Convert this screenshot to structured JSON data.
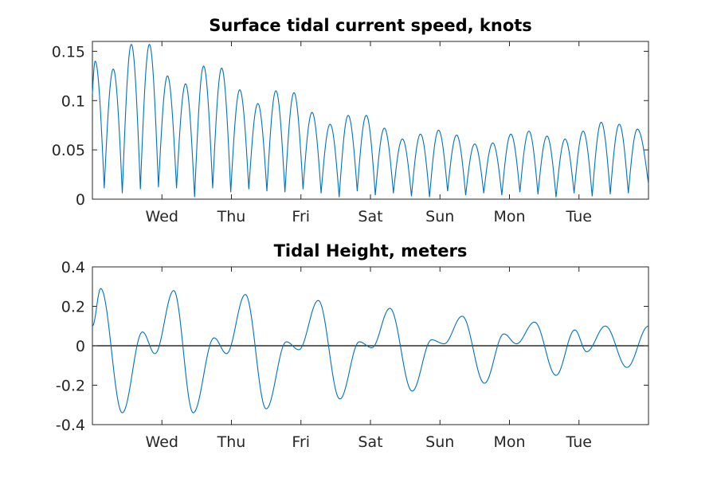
{
  "chart_data": [
    {
      "type": "line",
      "title": "Surface tidal current speed, knots",
      "xlabel": "",
      "ylabel": "",
      "xlim": [
        0,
        8
      ],
      "ylim": [
        0,
        0.16
      ],
      "yticks": [
        0,
        0.05,
        0.1,
        0.15
      ],
      "ytick_labels": [
        "0",
        "0.05",
        "0.1",
        "0.15"
      ],
      "xticks": [
        1,
        2,
        3,
        4,
        5,
        6,
        7
      ],
      "xtick_labels": [
        "Wed",
        "Thu",
        "Fri",
        "Sat",
        "Sun",
        "Mon",
        "Tue"
      ],
      "color": "#0072BD",
      "grid": false,
      "peak_t": [
        0.04,
        0.3,
        0.56,
        0.82,
        1.08,
        1.34,
        1.6,
        1.86,
        2.12,
        2.38,
        2.64,
        2.9,
        3.16,
        3.42,
        3.68,
        3.94,
        4.2,
        4.46,
        4.72,
        4.98,
        5.24,
        5.5,
        5.76,
        6.02,
        6.28,
        6.54,
        6.8,
        7.06,
        7.32,
        7.58,
        7.84
      ],
      "peak_y": [
        0.14,
        0.132,
        0.157,
        0.157,
        0.125,
        0.117,
        0.135,
        0.133,
        0.111,
        0.097,
        0.11,
        0.108,
        0.088,
        0.076,
        0.085,
        0.085,
        0.072,
        0.061,
        0.066,
        0.07,
        0.065,
        0.056,
        0.057,
        0.066,
        0.069,
        0.064,
        0.061,
        0.069,
        0.078,
        0.076,
        0.071
      ],
      "trough_t": [
        0.17,
        0.43,
        0.69,
        0.95,
        1.21,
        1.47,
        1.73,
        1.99,
        2.25,
        2.51,
        2.77,
        3.03,
        3.29,
        3.55,
        3.81,
        4.07,
        4.33,
        4.59,
        4.85,
        5.11,
        5.37,
        5.63,
        5.89,
        6.15,
        6.41,
        6.67,
        6.93,
        7.19,
        7.45,
        7.71
      ],
      "trough_y": [
        0.011,
        0.006,
        0.01,
        0.012,
        0.011,
        0.002,
        0.011,
        0.007,
        0.01,
        0.008,
        0.007,
        0.01,
        0.006,
        0.002,
        0.008,
        0.004,
        0.006,
        0.003,
        0.002,
        0.008,
        0.004,
        0.006,
        0.004,
        0.007,
        0.005,
        0.002,
        0.006,
        0.003,
        0.005,
        0.006
      ],
      "start_y": 0.107,
      "end_y": 0.015
    },
    {
      "type": "line",
      "title": "Tidal Height, meters",
      "xlabel": "",
      "ylabel": "",
      "xlim": [
        0,
        8
      ],
      "ylim": [
        -0.4,
        0.4
      ],
      "yticks": [
        -0.4,
        -0.2,
        0,
        0.2,
        0.4
      ],
      "ytick_labels": [
        "-0.4",
        "-0.2",
        "0",
        "0.2",
        "0.4"
      ],
      "xticks": [
        1,
        2,
        3,
        4,
        5,
        6,
        7
      ],
      "xtick_labels": [
        "Wed",
        "Thu",
        "Fri",
        "Sat",
        "Sun",
        "Mon",
        "Tue"
      ],
      "color": "#0072BD",
      "reference_line_y": 0,
      "grid": false,
      "x": [
        0,
        0.12,
        0.43,
        0.72,
        0.9,
        1.17,
        1.45,
        1.75,
        1.93,
        2.2,
        2.5,
        2.79,
        2.97,
        3.25,
        3.56,
        3.84,
        4.02,
        4.28,
        4.6,
        4.88,
        5.06,
        5.32,
        5.64,
        5.92,
        6.1,
        6.36,
        6.67,
        6.94,
        7.11,
        7.38,
        7.69,
        8
      ],
      "y": [
        0.1,
        0.29,
        -0.34,
        0.07,
        -0.04,
        0.28,
        -0.34,
        0.04,
        -0.04,
        0.26,
        -0.32,
        0.02,
        -0.02,
        0.23,
        -0.27,
        0.02,
        -0.01,
        0.19,
        -0.23,
        0.03,
        0.01,
        0.15,
        -0.19,
        0.06,
        0.01,
        0.12,
        -0.15,
        0.08,
        -0.03,
        0.1,
        -0.11,
        0.1
      ]
    }
  ]
}
